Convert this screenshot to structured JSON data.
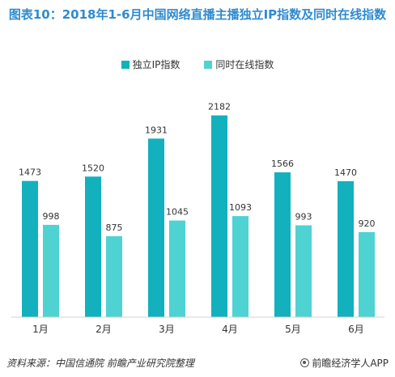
{
  "title": "图表10：2018年1-6月中国网络直播主播独立IP指数及同时在线指数",
  "legend": {
    "items": [
      {
        "label": "独立IP指数",
        "color": "#12b1bd"
      },
      {
        "label": "同时在线指数",
        "color": "#4fd2d2"
      }
    ]
  },
  "footer": {
    "source": "资料来源：中国信通院  前瞻产业研究院整理",
    "brand": "前瞻经济学人APP"
  },
  "chart_data": {
    "type": "bar",
    "title": "图表10：2018年1-6月中国网络直播主播独立IP指数及同时在线指数",
    "categories": [
      "1月",
      "2月",
      "3月",
      "4月",
      "5月",
      "6月"
    ],
    "series": [
      {
        "name": "独立IP指数",
        "values": [
          1473,
          1520,
          1931,
          2182,
          1566,
          1470
        ],
        "color": "#12b1bd"
      },
      {
        "name": "同时在线指数",
        "values": [
          998,
          875,
          1045,
          1093,
          993,
          920
        ],
        "color": "#4fd2d2"
      }
    ],
    "ylim": [
      0,
      2450
    ],
    "grid": false,
    "legend_position": "top-center",
    "xlabel": "",
    "ylabel": ""
  }
}
